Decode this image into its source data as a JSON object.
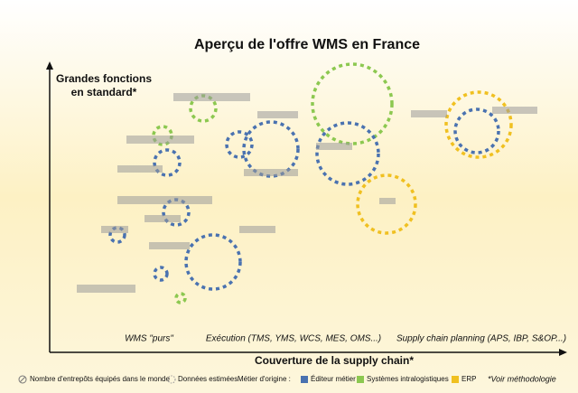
{
  "chart_data": {
    "type": "bubble",
    "title": "Aperçu de l'offre WMS en France",
    "y_label": [
      "Grandes fonctions",
      "en standard*"
    ],
    "x_label": "Couverture de la supply chain*",
    "categories": [
      "WMS \"purs\"",
      "Exécution (TMS, YMS, WCS, MES, OMS...)",
      "Supply chain planning (APS, IBP, S&OP...)"
    ],
    "legend": {
      "size": "Nombre d'entrepôts équipés dans le monde",
      "estimated": "Données estimées",
      "origin": "Métier d'origine :",
      "series": [
        {
          "name": "Éditeur métier",
          "color": "#4a72b0"
        },
        {
          "name": "Systèmes intralogistiques",
          "color": "#8cc850"
        },
        {
          "name": "ERP",
          "color": "#f0c020"
        }
      ]
    },
    "note": "*Voir méthodologie"
  }
}
